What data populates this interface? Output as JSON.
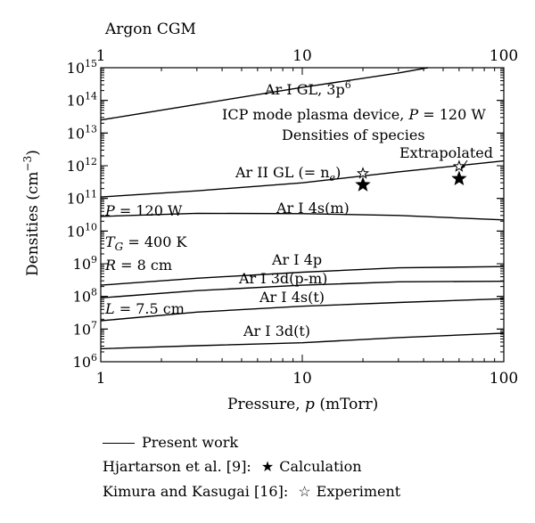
{
  "chart_data": {
    "type": "line",
    "title": "Argon CGM",
    "xlabel_prefix": "Pressure, ",
    "xlabel_var": "p",
    "xlabel_unit": " (mTorr)",
    "ylabel": "Densities (cm",
    "ylabel_exp": "−3",
    "ylabel_close": ")",
    "x_scale": "log",
    "y_scale": "log",
    "xlim": [
      1,
      100
    ],
    "ylim": [
      1000000.0,
      1000000000000000.0
    ],
    "x_ticks": [
      {
        "value": 1,
        "label": "1"
      },
      {
        "value": 10,
        "label": "10"
      },
      {
        "value": 100,
        "label": "100"
      }
    ],
    "y_ticks": [
      {
        "value": 1000000.0,
        "exp": "6"
      },
      {
        "value": 10000000.0,
        "exp": "7"
      },
      {
        "value": 100000000.0,
        "exp": "8"
      },
      {
        "value": 1000000000.0,
        "exp": "9"
      },
      {
        "value": 10000000000.0,
        "exp": "10"
      },
      {
        "value": 100000000000.0,
        "exp": "11"
      },
      {
        "value": 1000000000000.0,
        "exp": "12"
      },
      {
        "value": 10000000000000.0,
        "exp": "13"
      },
      {
        "value": 100000000000000.0,
        "exp": "14"
      },
      {
        "value": 1000000000000000.0,
        "exp": "15"
      }
    ],
    "tick_base": "10",
    "series": [
      {
        "name": "Ar I GL, 3p",
        "name_sup": "6",
        "x": [
          1,
          3,
          10,
          30,
          42
        ],
        "y": [
          25000000000000.0,
          75000000000000.0,
          250000000000000.0,
          690000000000000.0,
          1000000000000000.0
        ]
      },
      {
        "name": "Ar II GL (= n",
        "name_sub": "e",
        "name_close": ")",
        "x": [
          1,
          3,
          10,
          30,
          100
        ],
        "y": [
          110000000000.0,
          170000000000.0,
          300000000000.0,
          650000000000.0,
          1400000000000.0
        ]
      },
      {
        "name": "Ar I 4s(m)",
        "x": [
          1,
          3,
          10,
          30,
          100
        ],
        "y": [
          28000000000.0,
          35000000000.0,
          34000000000.0,
          30000000000.0,
          22000000000.0
        ]
      },
      {
        "name": "Ar I 4p",
        "x": [
          1,
          3,
          10,
          30,
          100
        ],
        "y": [
          220000000.0,
          360000000.0,
          550000000.0,
          750000000.0,
          820000000.0
        ]
      },
      {
        "name": "Ar I 3d(p-m)",
        "x": [
          1,
          3,
          10,
          30,
          100
        ],
        "y": [
          90000000.0,
          150000000.0,
          220000000.0,
          280000000.0,
          290000000.0
        ]
      },
      {
        "name": "Ar I 4s(t)",
        "x": [
          1,
          3,
          10,
          30,
          100
        ],
        "y": [
          18000000.0,
          33000000.0,
          50000000.0,
          65000000.0,
          85000000.0
        ]
      },
      {
        "name": "Ar I 3d(t)",
        "x": [
          1,
          3,
          10,
          30,
          100
        ],
        "y": [
          2500000.0,
          3100000.0,
          3800000.0,
          5500000.0,
          7500000.0
        ]
      }
    ],
    "calculation_points": [
      {
        "x": 20,
        "y": 260000000000.0
      },
      {
        "x": 60,
        "y": 400000000000.0
      }
    ],
    "experiment_points": [
      {
        "x": 20,
        "y": 580000000000.0
      },
      {
        "x": 60,
        "y": 950000000000.0
      }
    ],
    "annotations": {
      "device": "ICP mode plasma device, ",
      "device_var": "P",
      "device_value": " = 120 W",
      "species": "Densities of species",
      "extrapolated": "Extrapolated"
    },
    "conditions": [
      {
        "var": "P",
        "sub": "",
        "value": " = 120 W"
      },
      {
        "var": "T",
        "sub": "G",
        "value": " = 400 K"
      },
      {
        "var": "R",
        "sub": "",
        "value": " = 8 cm"
      },
      {
        "var": "L",
        "sub": "",
        "value": " = 7.5 cm"
      }
    ]
  },
  "legend": {
    "present_work": "Present work",
    "calc_source": "Hjartarson et al. [9]: ",
    "calc_symbol": "★",
    "calc_label": "Calculation",
    "exp_source": "Kimura and Kasugai [16]: ",
    "exp_symbol": "☆",
    "exp_label": "Experiment"
  }
}
